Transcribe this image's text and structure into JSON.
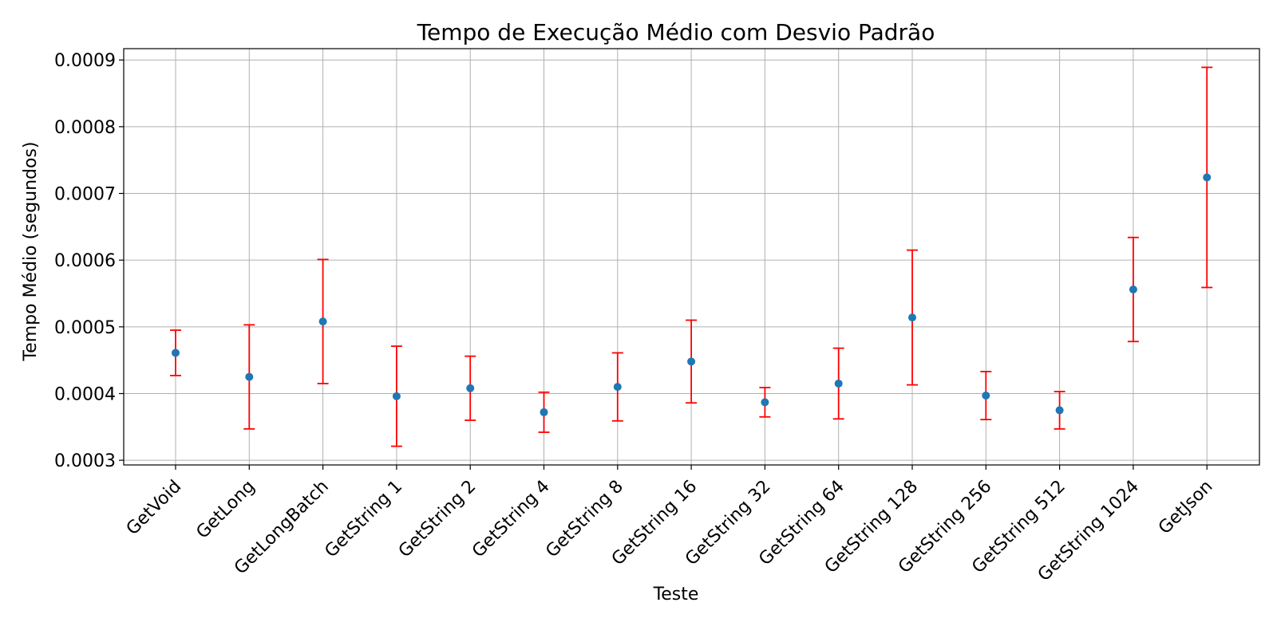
{
  "chart_data": {
    "type": "scatter",
    "title": "Tempo de Execução Médio com Desvio Padrão",
    "xlabel": "Teste",
    "ylabel": "Tempo Médio (segundos)",
    "categories": [
      "GetVoid",
      "GetLong",
      "GetLongBatch",
      "GetString 1",
      "GetString 2",
      "GetString 4",
      "GetString 8",
      "GetString 16",
      "GetString 32",
      "GetString 64",
      "GetString 128",
      "GetString 256",
      "GetString 512",
      "GetString 1024",
      "GetJson"
    ],
    "values": [
      0.000461,
      0.000425,
      0.000508,
      0.000396,
      0.000408,
      0.000372,
      0.00041,
      0.000448,
      0.000387,
      0.000415,
      0.000514,
      0.000397,
      0.000375,
      0.000556,
      0.000724
    ],
    "std": [
      3.4e-05,
      7.8e-05,
      9.3e-05,
      7.5e-05,
      4.8e-05,
      3e-05,
      5.1e-05,
      6.2e-05,
      2.2e-05,
      5.3e-05,
      0.000101,
      3.6e-05,
      2.8e-05,
      7.8e-05,
      0.000165
    ],
    "ylim": [
      0.000293,
      0.000917
    ],
    "yticks": [
      0.0003,
      0.0004,
      0.0005,
      0.0006,
      0.0007,
      0.0008,
      0.0009
    ],
    "ytick_labels": [
      "0.0003",
      "0.0004",
      "0.0005",
      "0.0006",
      "0.0007",
      "0.0008",
      "0.0009"
    ],
    "grid": true,
    "marker_color": "#1f77b4",
    "errorbar_color": "#ff0000",
    "grid_color": "#b0b0b0"
  }
}
